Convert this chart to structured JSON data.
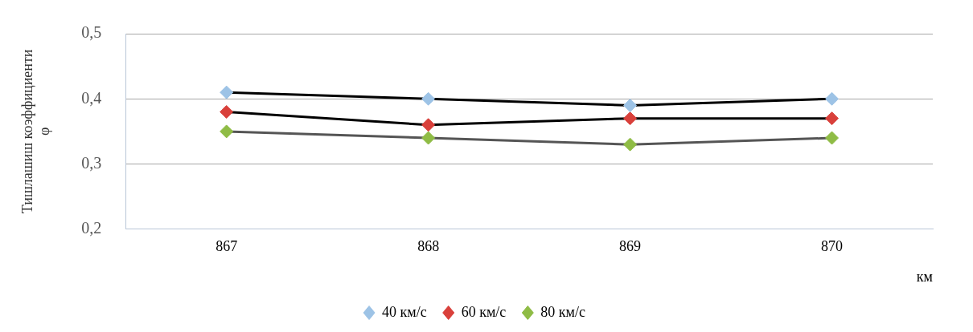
{
  "chart_data": {
    "type": "line",
    "ylabel": "Тишлашиш коэффициенти φ",
    "xlabel": "км",
    "categories": [
      "867",
      "868",
      "869",
      "870"
    ],
    "series": [
      {
        "name": "40 км/с",
        "color": "#9dc3e6",
        "values": [
          0.41,
          0.4,
          0.39,
          0.4
        ]
      },
      {
        "name": "60 км/с",
        "color": "#d9403b",
        "values": [
          0.38,
          0.36,
          0.37,
          0.37
        ]
      },
      {
        "name": "80 км/с",
        "color": "#8fbc45",
        "values": [
          0.35,
          0.34,
          0.33,
          0.34
        ]
      }
    ],
    "ylim": [
      0.2,
      0.5
    ],
    "yticks": [
      {
        "value": 0.2,
        "label": "0,2"
      },
      {
        "value": 0.3,
        "label": "0,3"
      },
      {
        "value": 0.4,
        "label": "0,4"
      },
      {
        "value": 0.5,
        "label": "0,5"
      }
    ],
    "grid": "y",
    "legend": "bottom",
    "marker": "diamond",
    "line_style": "solid"
  }
}
